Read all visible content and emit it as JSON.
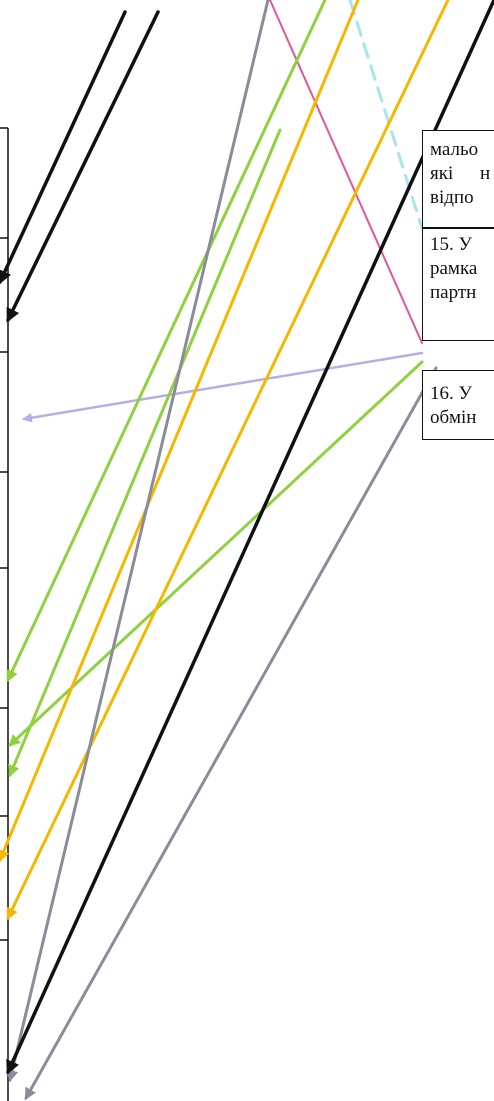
{
  "colors": {
    "black": "#111111",
    "pink": "#e2559a",
    "green": "#8fd13f",
    "orange": "#f5b700",
    "gray": "#8a8d99",
    "lavender": "#b7aee6",
    "light_blue": "#a8e4ec"
  },
  "cells": [
    {
      "lines": [
        "мальо",
        "які   н",
        "відпо"
      ]
    },
    {
      "lines": [
        "15. У",
        "рамка",
        "партн"
      ]
    },
    {
      "lines": [
        "16. У",
        "обмін"
      ]
    }
  ]
}
